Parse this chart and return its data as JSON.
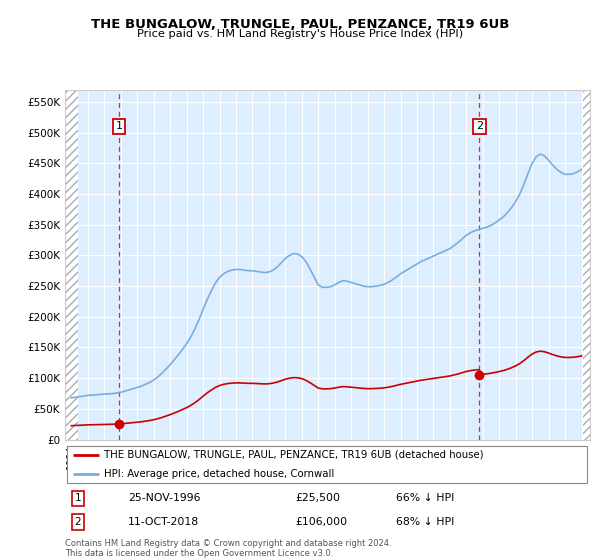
{
  "title1": "THE BUNGALOW, TRUNGLE, PAUL, PENZANCE, TR19 6UB",
  "title2": "Price paid vs. HM Land Registry's House Price Index (HPI)",
  "ylim": [
    0,
    570000
  ],
  "yticks": [
    0,
    50000,
    100000,
    150000,
    200000,
    250000,
    300000,
    350000,
    400000,
    450000,
    500000,
    550000
  ],
  "ytick_labels": [
    "£0",
    "£50K",
    "£100K",
    "£150K",
    "£200K",
    "£250K",
    "£300K",
    "£350K",
    "£400K",
    "£450K",
    "£500K",
    "£550K"
  ],
  "sale1_x": 1996.9,
  "sale1_y": 25500,
  "sale1_date": "25-NOV-1996",
  "sale1_price": "£25,500",
  "sale1_hpi": "66% ↓ HPI",
  "sale2_x": 2018.78,
  "sale2_y": 106000,
  "sale2_date": "11-OCT-2018",
  "sale2_price": "£106,000",
  "sale2_hpi": "68% ↓ HPI",
  "hpi_color": "#7aadde",
  "sale_color": "#cc0000",
  "legend_label1": "THE BUNGALOW, TRUNGLE, PAUL, PENZANCE, TR19 6UB (detached house)",
  "legend_label2": "HPI: Average price, detached house, Cornwall",
  "footer": "Contains HM Land Registry data © Crown copyright and database right 2024.\nThis data is licensed under the Open Government Licence v3.0.",
  "plot_bg": "#ddeeff",
  "xmin": 1993.6,
  "xmax": 2025.5,
  "hatch_right_start": 2025.08,
  "hatch_left_end": 1994.42,
  "years_hpi": [
    1994.0,
    1994.25,
    1994.5,
    1994.75,
    1995.0,
    1995.25,
    1995.5,
    1995.75,
    1996.0,
    1996.25,
    1996.5,
    1996.75,
    1997.0,
    1997.25,
    1997.5,
    1997.75,
    1998.0,
    1998.25,
    1998.5,
    1998.75,
    1999.0,
    1999.25,
    1999.5,
    1999.75,
    2000.0,
    2000.25,
    2000.5,
    2000.75,
    2001.0,
    2001.25,
    2001.5,
    2001.75,
    2002.0,
    2002.25,
    2002.5,
    2002.75,
    2003.0,
    2003.25,
    2003.5,
    2003.75,
    2004.0,
    2004.25,
    2004.5,
    2004.75,
    2005.0,
    2005.25,
    2005.5,
    2005.75,
    2006.0,
    2006.25,
    2006.5,
    2006.75,
    2007.0,
    2007.25,
    2007.5,
    2007.75,
    2008.0,
    2008.25,
    2008.5,
    2008.75,
    2009.0,
    2009.25,
    2009.5,
    2009.75,
    2010.0,
    2010.25,
    2010.5,
    2010.75,
    2011.0,
    2011.25,
    2011.5,
    2011.75,
    2012.0,
    2012.25,
    2012.5,
    2012.75,
    2013.0,
    2013.25,
    2013.5,
    2013.75,
    2014.0,
    2014.25,
    2014.5,
    2014.75,
    2015.0,
    2015.25,
    2015.5,
    2015.75,
    2016.0,
    2016.25,
    2016.5,
    2016.75,
    2017.0,
    2017.25,
    2017.5,
    2017.75,
    2018.0,
    2018.25,
    2018.5,
    2018.75,
    2019.0,
    2019.25,
    2019.5,
    2019.75,
    2020.0,
    2020.25,
    2020.5,
    2020.75,
    2021.0,
    2021.25,
    2021.5,
    2021.75,
    2022.0,
    2022.25,
    2022.5,
    2022.75,
    2023.0,
    2023.25,
    2023.5,
    2023.75,
    2024.0,
    2024.25,
    2024.5,
    2024.75,
    2025.0
  ],
  "hpi_values": [
    68000,
    69000,
    70000,
    71000,
    72000,
    72500,
    73000,
    73500,
    74000,
    74500,
    75000,
    75800,
    77000,
    79000,
    81000,
    83000,
    85000,
    87000,
    90000,
    93000,
    97000,
    102000,
    108000,
    115000,
    122000,
    130000,
    138000,
    147000,
    156000,
    167000,
    180000,
    195000,
    212000,
    228000,
    242000,
    255000,
    264000,
    270000,
    274000,
    276000,
    277000,
    277000,
    276000,
    275000,
    275000,
    274000,
    273000,
    272000,
    273000,
    276000,
    281000,
    288000,
    295000,
    300000,
    303000,
    302000,
    298000,
    290000,
    278000,
    265000,
    252000,
    248000,
    248000,
    249000,
    252000,
    256000,
    259000,
    258000,
    256000,
    254000,
    252000,
    250000,
    249000,
    249000,
    250000,
    251000,
    253000,
    256000,
    260000,
    265000,
    270000,
    274000,
    278000,
    282000,
    286000,
    290000,
    293000,
    296000,
    299000,
    302000,
    305000,
    308000,
    311000,
    316000,
    321000,
    327000,
    333000,
    337000,
    340000,
    342000,
    344000,
    346000,
    349000,
    353000,
    358000,
    363000,
    370000,
    378000,
    388000,
    400000,
    416000,
    434000,
    450000,
    461000,
    465000,
    462000,
    455000,
    447000,
    440000,
    435000,
    432000,
    432000,
    433000,
    436000,
    440000
  ]
}
